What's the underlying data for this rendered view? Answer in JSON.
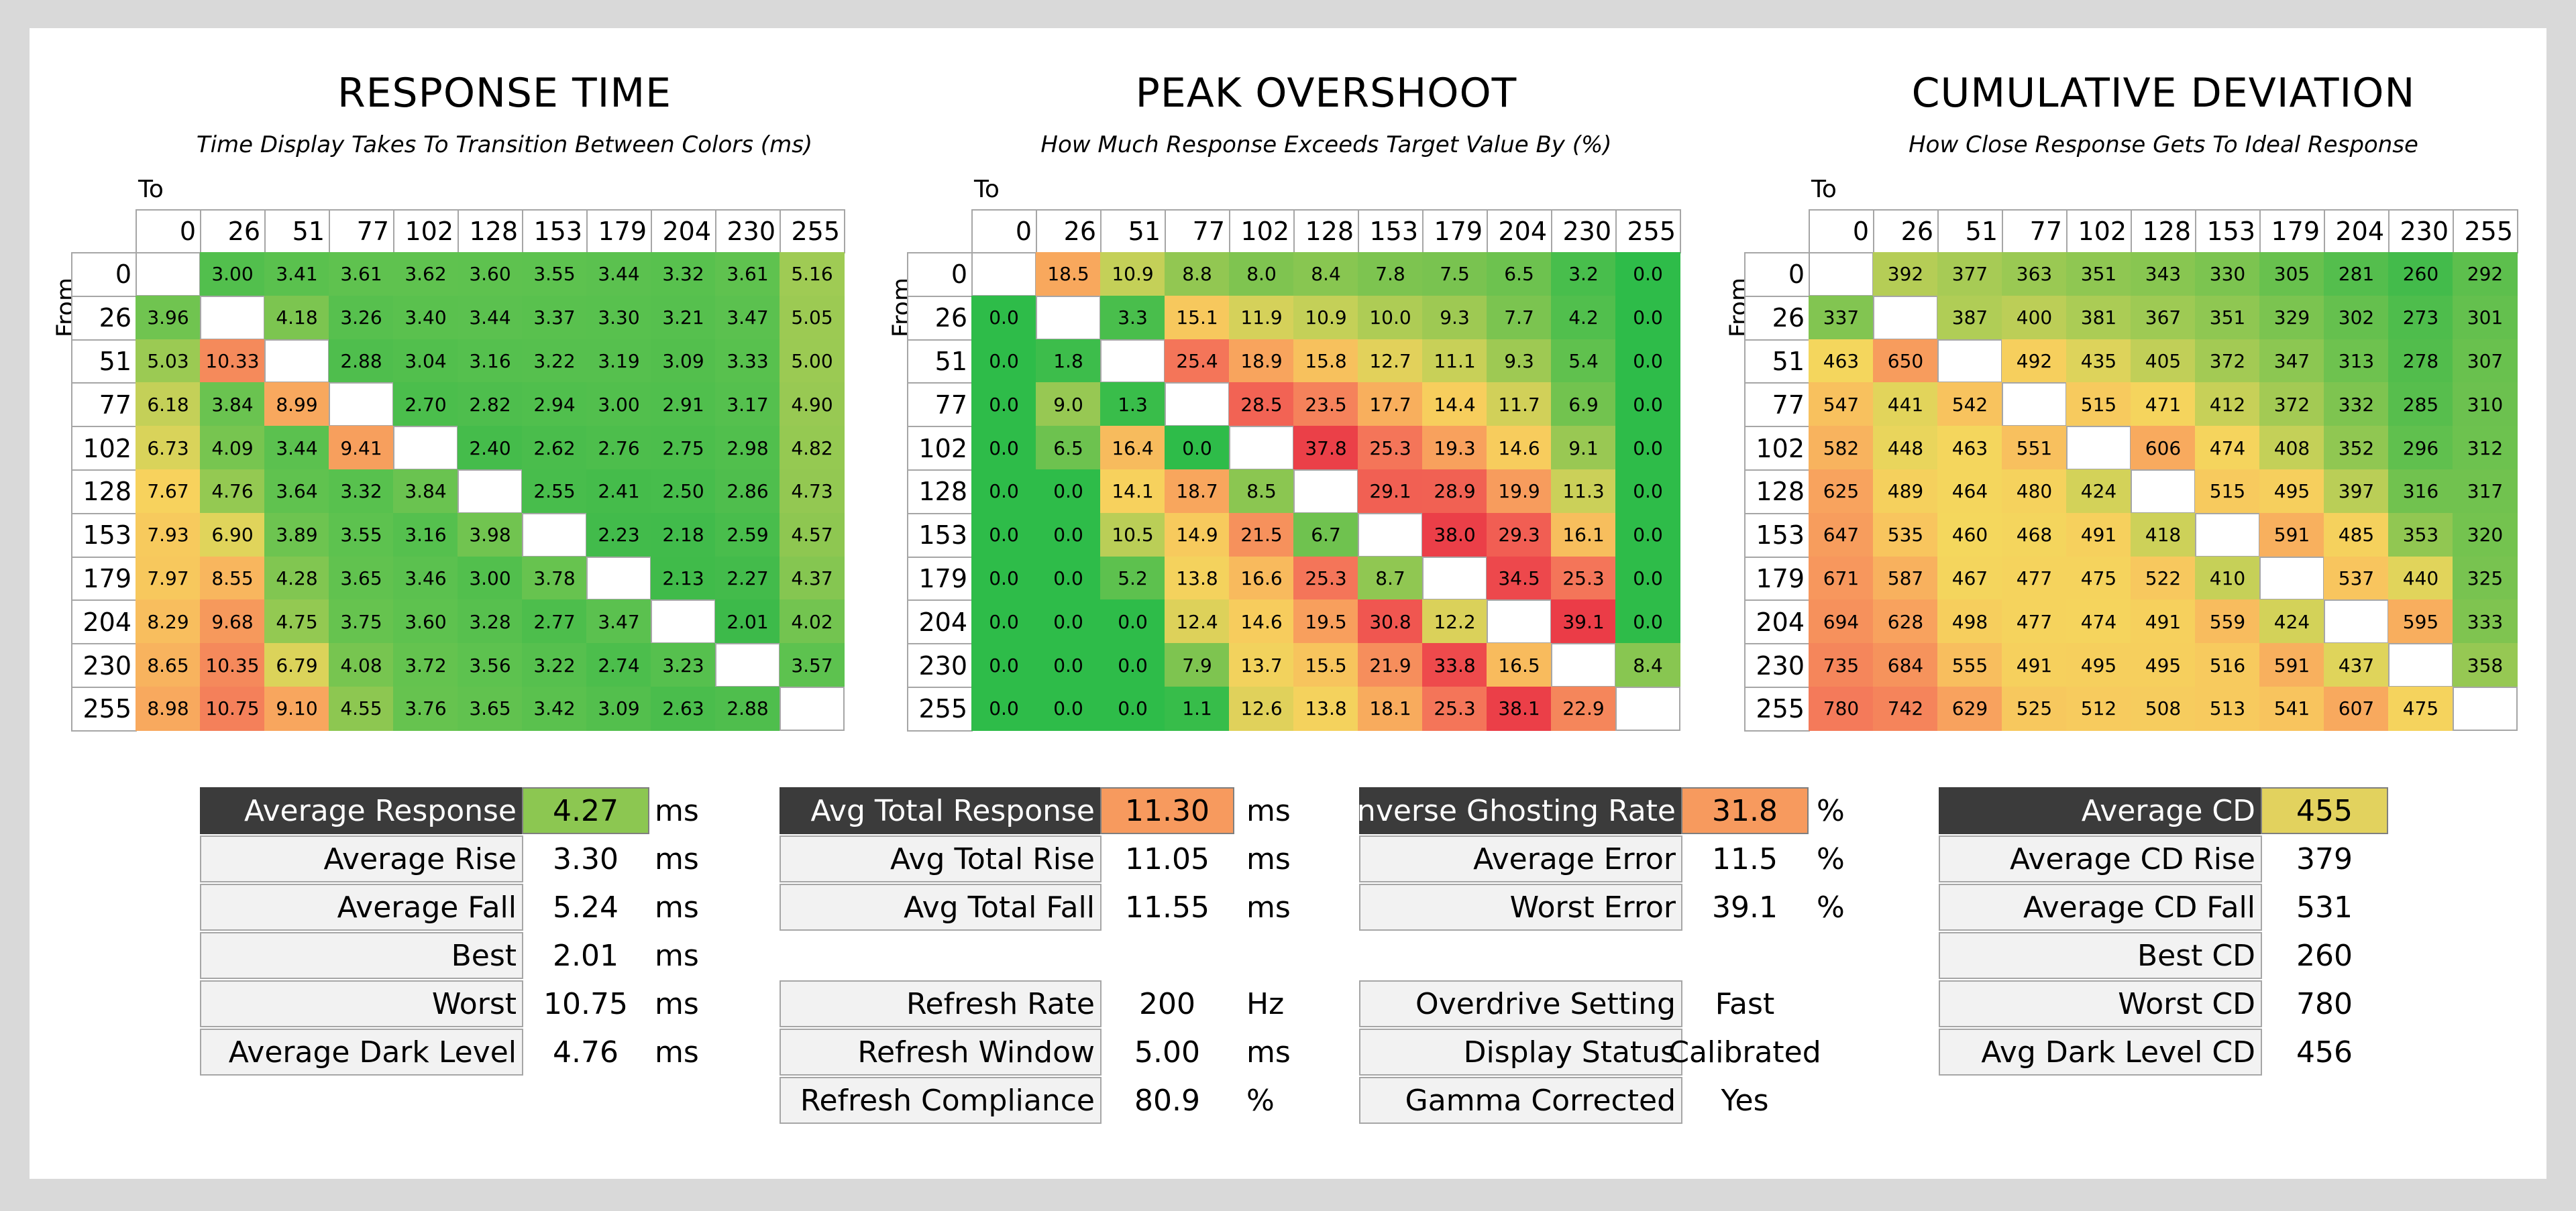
{
  "heatmaps": [
    {
      "title": "RESPONSE TIME",
      "subtitle": "Time Display Takes To Transition Between Colors (ms)",
      "x_axis_label": "To",
      "y_axis_label": "From",
      "scale": "rt",
      "levels": [
        "0",
        "26",
        "51",
        "77",
        "102",
        "128",
        "153",
        "179",
        "204",
        "230",
        "255"
      ],
      "rows": [
        [
          "",
          "3.00",
          "3.41",
          "3.61",
          "3.62",
          "3.60",
          "3.55",
          "3.44",
          "3.32",
          "3.61",
          "5.16"
        ],
        [
          "3.96",
          "",
          "4.18",
          "3.26",
          "3.40",
          "3.44",
          "3.37",
          "3.30",
          "3.21",
          "3.47",
          "5.05"
        ],
        [
          "5.03",
          "10.33",
          "",
          "2.88",
          "3.04",
          "3.16",
          "3.22",
          "3.19",
          "3.09",
          "3.33",
          "5.00"
        ],
        [
          "6.18",
          "3.84",
          "8.99",
          "",
          "2.70",
          "2.82",
          "2.94",
          "3.00",
          "2.91",
          "3.17",
          "4.90"
        ],
        [
          "6.73",
          "4.09",
          "3.44",
          "9.41",
          "",
          "2.40",
          "2.62",
          "2.76",
          "2.75",
          "2.98",
          "4.82"
        ],
        [
          "7.67",
          "4.76",
          "3.64",
          "3.32",
          "3.84",
          "",
          "2.55",
          "2.41",
          "2.50",
          "2.86",
          "4.73"
        ],
        [
          "7.93",
          "6.90",
          "3.89",
          "3.55",
          "3.16",
          "3.98",
          "",
          "2.23",
          "2.18",
          "2.59",
          "4.57"
        ],
        [
          "7.97",
          "8.55",
          "4.28",
          "3.65",
          "3.46",
          "3.00",
          "3.78",
          "",
          "2.13",
          "2.27",
          "4.37"
        ],
        [
          "8.29",
          "9.68",
          "4.75",
          "3.75",
          "3.60",
          "3.28",
          "2.77",
          "3.47",
          "",
          "2.01",
          "4.02"
        ],
        [
          "8.65",
          "10.35",
          "6.79",
          "4.08",
          "3.72",
          "3.56",
          "3.22",
          "2.74",
          "3.23",
          "",
          "3.57"
        ],
        [
          "8.98",
          "10.75",
          "9.10",
          "4.55",
          "3.76",
          "3.65",
          "3.42",
          "3.09",
          "2.63",
          "2.88",
          ""
        ]
      ]
    },
    {
      "title": "PEAK OVERSHOOT",
      "subtitle": "How Much Response Exceeds Target Value By (%)",
      "x_axis_label": "To",
      "y_axis_label": "From",
      "scale": "os",
      "levels": [
        "0",
        "26",
        "51",
        "77",
        "102",
        "128",
        "153",
        "179",
        "204",
        "230",
        "255"
      ],
      "rows": [
        [
          "",
          "18.5",
          "10.9",
          "8.8",
          "8.0",
          "8.4",
          "7.8",
          "7.5",
          "6.5",
          "3.2",
          "0.0"
        ],
        [
          "0.0",
          "",
          "3.3",
          "15.1",
          "11.9",
          "10.9",
          "10.0",
          "9.3",
          "7.7",
          "4.2",
          "0.0"
        ],
        [
          "0.0",
          "1.8",
          "",
          "25.4",
          "18.9",
          "15.8",
          "12.7",
          "11.1",
          "9.3",
          "5.4",
          "0.0"
        ],
        [
          "0.0",
          "9.0",
          "1.3",
          "",
          "28.5",
          "23.5",
          "17.7",
          "14.4",
          "11.7",
          "6.9",
          "0.0"
        ],
        [
          "0.0",
          "6.5",
          "16.4",
          "0.0",
          "",
          "37.8",
          "25.3",
          "19.3",
          "14.6",
          "9.1",
          "0.0"
        ],
        [
          "0.0",
          "0.0",
          "14.1",
          "18.7",
          "8.5",
          "",
          "29.1",
          "28.9",
          "19.9",
          "11.3",
          "0.0"
        ],
        [
          "0.0",
          "0.0",
          "10.5",
          "14.9",
          "21.5",
          "6.7",
          "",
          "38.0",
          "29.3",
          "16.1",
          "0.0"
        ],
        [
          "0.0",
          "0.0",
          "5.2",
          "13.8",
          "16.6",
          "25.3",
          "8.7",
          "",
          "34.5",
          "25.3",
          "0.0"
        ],
        [
          "0.0",
          "0.0",
          "0.0",
          "12.4",
          "14.6",
          "19.5",
          "30.8",
          "12.2",
          "",
          "39.1",
          "0.0"
        ],
        [
          "0.0",
          "0.0",
          "0.0",
          "7.9",
          "13.7",
          "15.5",
          "21.9",
          "33.8",
          "16.5",
          "",
          "8.4"
        ],
        [
          "0.0",
          "0.0",
          "0.0",
          "1.1",
          "12.6",
          "13.8",
          "18.1",
          "25.3",
          "38.1",
          "22.9",
          ""
        ]
      ]
    },
    {
      "title": "CUMULATIVE DEVIATION",
      "subtitle": "How Close Response Gets To Ideal Response",
      "x_axis_label": "To",
      "y_axis_label": "From",
      "scale": "cd",
      "levels": [
        "0",
        "26",
        "51",
        "77",
        "102",
        "128",
        "153",
        "179",
        "204",
        "230",
        "255"
      ],
      "rows": [
        [
          "",
          "392",
          "377",
          "363",
          "351",
          "343",
          "330",
          "305",
          "281",
          "260",
          "292"
        ],
        [
          "337",
          "",
          "387",
          "400",
          "381",
          "367",
          "351",
          "329",
          "302",
          "273",
          "301"
        ],
        [
          "463",
          "650",
          "",
          "492",
          "435",
          "405",
          "372",
          "347",
          "313",
          "278",
          "307"
        ],
        [
          "547",
          "441",
          "542",
          "",
          "515",
          "471",
          "412",
          "372",
          "332",
          "285",
          "310"
        ],
        [
          "582",
          "448",
          "463",
          "551",
          "",
          "606",
          "474",
          "408",
          "352",
          "296",
          "312"
        ],
        [
          "625",
          "489",
          "464",
          "480",
          "424",
          "",
          "515",
          "495",
          "397",
          "316",
          "317"
        ],
        [
          "647",
          "535",
          "460",
          "468",
          "491",
          "418",
          "",
          "591",
          "485",
          "353",
          "320"
        ],
        [
          "671",
          "587",
          "467",
          "477",
          "475",
          "522",
          "410",
          "",
          "537",
          "440",
          "325"
        ],
        [
          "694",
          "628",
          "498",
          "477",
          "474",
          "491",
          "559",
          "424",
          "",
          "595",
          "333"
        ],
        [
          "735",
          "684",
          "555",
          "491",
          "495",
          "495",
          "516",
          "591",
          "437",
          "",
          "358"
        ],
        [
          "780",
          "742",
          "629",
          "525",
          "512",
          "508",
          "513",
          "541",
          "607",
          "475",
          ""
        ]
      ]
    }
  ],
  "stats": [
    {
      "rows": [
        {
          "label": "Average Response",
          "value": "4.27",
          "unit": "ms",
          "highlight": "#8cc751",
          "dark": true
        },
        {
          "label": "Average Rise",
          "value": "3.30",
          "unit": "ms"
        },
        {
          "label": "Average Fall",
          "value": "5.24",
          "unit": "ms"
        },
        {
          "label": "Best",
          "value": "2.01",
          "unit": "ms"
        },
        {
          "label": "Worst",
          "value": "10.75",
          "unit": "ms"
        },
        {
          "label": "Average Dark Level",
          "value": "4.76",
          "unit": "ms"
        }
      ]
    },
    {
      "rows": [
        {
          "label": "Avg Total Response",
          "value": "11.30",
          "unit": "ms",
          "highlight": "#f79a5e",
          "dark": true
        },
        {
          "label": "Avg Total Rise",
          "value": "11.05",
          "unit": "ms"
        },
        {
          "label": "Avg Total Fall",
          "value": "11.55",
          "unit": "ms"
        },
        null,
        {
          "label": "Refresh Rate",
          "value": "200",
          "unit": "Hz"
        },
        {
          "label": "Refresh Window",
          "value": "5.00",
          "unit": "ms"
        },
        {
          "label": "Refresh Compliance",
          "value": "80.9",
          "unit": "%"
        }
      ]
    },
    {
      "rows": [
        {
          "label": "Inverse Ghosting Rate",
          "value": "31.8",
          "unit": "%",
          "highlight": "#f79a5e",
          "dark": true
        },
        {
          "label": "Average Error",
          "value": "11.5",
          "unit": "%"
        },
        {
          "label": "Worst Error",
          "value": "39.1",
          "unit": "%"
        },
        null,
        {
          "label": "Overdrive Setting",
          "value": "Fast",
          "unit": ""
        },
        {
          "label": "Display Status",
          "value": "Calibrated",
          "unit": ""
        },
        {
          "label": "Gamma Corrected",
          "value": "Yes",
          "unit": ""
        }
      ]
    },
    {
      "rows": [
        {
          "label": "Average CD",
          "value": "455",
          "unit": "",
          "highlight": "#e2d25e",
          "dark": true
        },
        {
          "label": "Average CD Rise",
          "value": "379",
          "unit": ""
        },
        {
          "label": "Average CD Fall",
          "value": "531",
          "unit": ""
        },
        {
          "label": "Best CD",
          "value": "260",
          "unit": ""
        },
        {
          "label": "Worst CD",
          "value": "780",
          "unit": ""
        },
        {
          "label": "Avg Dark Level CD",
          "value": "456",
          "unit": ""
        }
      ]
    }
  ],
  "chart_data": [
    {
      "type": "heatmap",
      "title": "RESPONSE TIME",
      "subtitle": "Time Display Takes To Transition Between Colors (ms)",
      "xlabel": "To",
      "ylabel": "From",
      "x": [
        0,
        26,
        51,
        77,
        102,
        128,
        153,
        179,
        204,
        230,
        255
      ],
      "y": [
        0,
        26,
        51,
        77,
        102,
        128,
        153,
        179,
        204,
        230,
        255
      ],
      "values": [
        [
          null,
          3.0,
          3.41,
          3.61,
          3.62,
          3.6,
          3.55,
          3.44,
          3.32,
          3.61,
          5.16
        ],
        [
          3.96,
          null,
          4.18,
          3.26,
          3.4,
          3.44,
          3.37,
          3.3,
          3.21,
          3.47,
          5.05
        ],
        [
          5.03,
          10.33,
          null,
          2.88,
          3.04,
          3.16,
          3.22,
          3.19,
          3.09,
          3.33,
          5.0
        ],
        [
          6.18,
          3.84,
          8.99,
          null,
          2.7,
          2.82,
          2.94,
          3.0,
          2.91,
          3.17,
          4.9
        ],
        [
          6.73,
          4.09,
          3.44,
          9.41,
          null,
          2.4,
          2.62,
          2.76,
          2.75,
          2.98,
          4.82
        ],
        [
          7.67,
          4.76,
          3.64,
          3.32,
          3.84,
          null,
          2.55,
          2.41,
          2.5,
          2.86,
          4.73
        ],
        [
          7.93,
          6.9,
          3.89,
          3.55,
          3.16,
          3.98,
          null,
          2.23,
          2.18,
          2.59,
          4.57
        ],
        [
          7.97,
          8.55,
          4.28,
          3.65,
          3.46,
          3.0,
          3.78,
          null,
          2.13,
          2.27,
          4.37
        ],
        [
          8.29,
          9.68,
          4.75,
          3.75,
          3.6,
          3.28,
          2.77,
          3.47,
          null,
          2.01,
          4.02
        ],
        [
          8.65,
          10.35,
          6.79,
          4.08,
          3.72,
          3.56,
          3.22,
          2.74,
          3.23,
          null,
          3.57
        ],
        [
          8.98,
          10.75,
          9.1,
          4.55,
          3.76,
          3.65,
          3.42,
          3.09,
          2.63,
          2.88,
          null
        ]
      ]
    },
    {
      "type": "heatmap",
      "title": "PEAK OVERSHOOT",
      "subtitle": "How Much Response Exceeds Target Value By (%)",
      "xlabel": "To",
      "ylabel": "From",
      "x": [
        0,
        26,
        51,
        77,
        102,
        128,
        153,
        179,
        204,
        230,
        255
      ],
      "y": [
        0,
        26,
        51,
        77,
        102,
        128,
        153,
        179,
        204,
        230,
        255
      ],
      "values": [
        [
          null,
          18.5,
          10.9,
          8.8,
          8.0,
          8.4,
          7.8,
          7.5,
          6.5,
          3.2,
          0.0
        ],
        [
          0.0,
          null,
          3.3,
          15.1,
          11.9,
          10.9,
          10.0,
          9.3,
          7.7,
          4.2,
          0.0
        ],
        [
          0.0,
          1.8,
          null,
          25.4,
          18.9,
          15.8,
          12.7,
          11.1,
          9.3,
          5.4,
          0.0
        ],
        [
          0.0,
          9.0,
          1.3,
          null,
          28.5,
          23.5,
          17.7,
          14.4,
          11.7,
          6.9,
          0.0
        ],
        [
          0.0,
          6.5,
          16.4,
          0.0,
          null,
          37.8,
          25.3,
          19.3,
          14.6,
          9.1,
          0.0
        ],
        [
          0.0,
          0.0,
          14.1,
          18.7,
          8.5,
          null,
          29.1,
          28.9,
          19.9,
          11.3,
          0.0
        ],
        [
          0.0,
          0.0,
          10.5,
          14.9,
          21.5,
          6.7,
          null,
          38.0,
          29.3,
          16.1,
          0.0
        ],
        [
          0.0,
          0.0,
          5.2,
          13.8,
          16.6,
          25.3,
          8.7,
          null,
          34.5,
          25.3,
          0.0
        ],
        [
          0.0,
          0.0,
          0.0,
          12.4,
          14.6,
          19.5,
          30.8,
          12.2,
          null,
          39.1,
          0.0
        ],
        [
          0.0,
          0.0,
          0.0,
          7.9,
          13.7,
          15.5,
          21.9,
          33.8,
          16.5,
          null,
          8.4
        ],
        [
          0.0,
          0.0,
          0.0,
          1.1,
          12.6,
          13.8,
          18.1,
          25.3,
          38.1,
          22.9,
          null
        ]
      ]
    },
    {
      "type": "heatmap",
      "title": "CUMULATIVE DEVIATION",
      "subtitle": "How Close Response Gets To Ideal Response",
      "xlabel": "To",
      "ylabel": "From",
      "x": [
        0,
        26,
        51,
        77,
        102,
        128,
        153,
        179,
        204,
        230,
        255
      ],
      "y": [
        0,
        26,
        51,
        77,
        102,
        128,
        153,
        179,
        204,
        230,
        255
      ],
      "values": [
        [
          null,
          392,
          377,
          363,
          351,
          343,
          330,
          305,
          281,
          260,
          292
        ],
        [
          337,
          null,
          387,
          400,
          381,
          367,
          351,
          329,
          302,
          273,
          301
        ],
        [
          463,
          650,
          null,
          492,
          435,
          405,
          372,
          347,
          313,
          278,
          307
        ],
        [
          547,
          441,
          542,
          null,
          515,
          471,
          412,
          372,
          332,
          285,
          310
        ],
        [
          582,
          448,
          463,
          551,
          null,
          606,
          474,
          408,
          352,
          296,
          312
        ],
        [
          625,
          489,
          464,
          480,
          424,
          null,
          515,
          495,
          397,
          316,
          317
        ],
        [
          647,
          535,
          460,
          468,
          491,
          418,
          null,
          591,
          485,
          353,
          320
        ],
        [
          671,
          587,
          467,
          477,
          475,
          522,
          410,
          null,
          537,
          440,
          325
        ],
        [
          694,
          628,
          498,
          477,
          474,
          491,
          559,
          424,
          null,
          595,
          333
        ],
        [
          735,
          684,
          555,
          491,
          495,
          495,
          516,
          591,
          437,
          null,
          358
        ],
        [
          780,
          742,
          629,
          525,
          512,
          508,
          513,
          541,
          607,
          475,
          null
        ]
      ]
    }
  ]
}
